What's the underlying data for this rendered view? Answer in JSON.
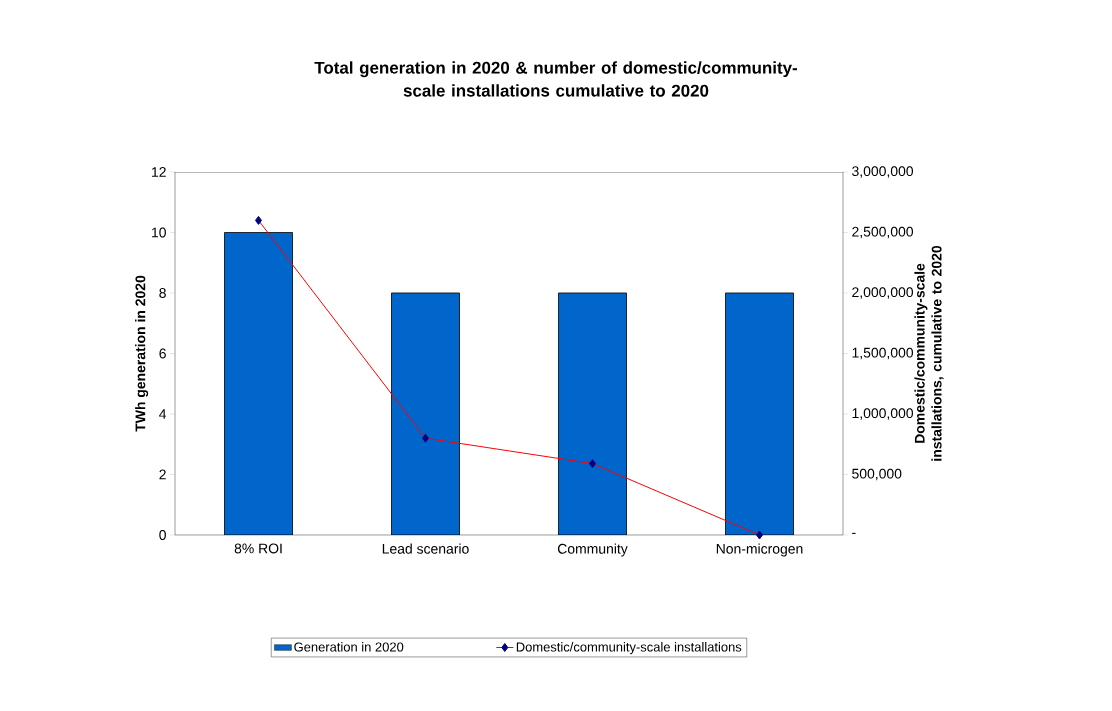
{
  "chart_data": {
    "type": "bar",
    "title": "Total generation in 2020 & number of domestic/community-scale installations cumulative to 2020",
    "categories": [
      "8% ROI",
      "Lead scenario",
      "Community",
      "Non-microgen"
    ],
    "ylabel": "TWh generation in 2020",
    "y2label": "Domestic/community-scale installations, cumulative to 2020",
    "series": [
      {
        "name": "Generation in 2020",
        "color": "#0066cc",
        "values": [
          10,
          8,
          8,
          8
        ]
      },
      {
        "name": "Domestic/community-scale installations",
        "type": "line",
        "axis": "y2",
        "color": "#ff0000",
        "marker": "diamond",
        "values": [
          2600000,
          800000,
          590000,
          0
        ]
      }
    ],
    "ylim": [
      0,
      12
    ],
    "yticks": [
      0,
      2,
      4,
      6,
      8,
      10,
      12
    ],
    "y2lim": [
      0,
      3000000
    ],
    "y2ticks": [
      {
        "value": 0,
        "label": "-"
      },
      {
        "value": 500000,
        "label": "500,000"
      },
      {
        "value": 1000000,
        "label": "1,000,000"
      },
      {
        "value": 1500000,
        "label": "1,500,000"
      },
      {
        "value": 2000000,
        "label": "2,000,000"
      },
      {
        "value": 2500000,
        "label": "2,500,000"
      },
      {
        "value": 3000000,
        "label": "3,000,000"
      }
    ],
    "legend": "bottom",
    "grid": false
  }
}
